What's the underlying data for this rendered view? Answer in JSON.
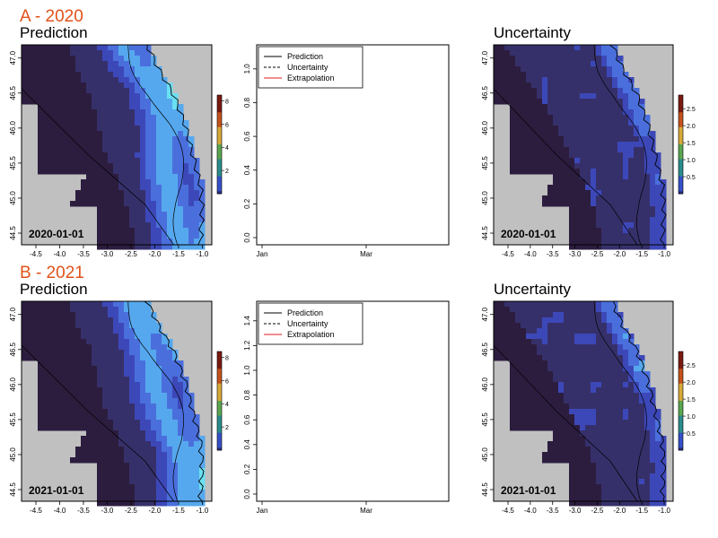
{
  "figure": {
    "rows": [
      {
        "label": "A - 2020",
        "map_titles": {
          "prediction": "Prediction",
          "uncertainty": "Uncertainty"
        },
        "date": "2020-01-01",
        "legend": [
          "Prediction",
          "Uncertainty",
          "Extrapolation"
        ]
      },
      {
        "label": "B - 2021",
        "map_titles": {
          "prediction": "Prediction",
          "uncertainty": "Uncertainty"
        },
        "date": "2021-01-01",
        "legend": [
          "Prediction",
          "Uncertainty",
          "Extrapolation"
        ]
      }
    ]
  },
  "colors": {
    "panel_label": "#e0521a",
    "land": "#c0c0c0",
    "background_white": "#ffffff",
    "extrapolation_line": "#e41a1c",
    "scale_low": "#2a1b3c",
    "scale_mid": "#3b4fc8",
    "scale_high": "#5ce6f0"
  },
  "chart_data": [
    {
      "id": "A-prediction-map",
      "type": "heatmap",
      "title": "Prediction",
      "x_ticks": [
        "-4.5",
        "-4.0",
        "-3.5",
        "-3.0",
        "-2.5",
        "-2.0",
        "-1.5",
        "-1.0"
      ],
      "y_ticks": [
        "44.5",
        "45.0",
        "45.5",
        "46.0",
        "46.5",
        "47.0"
      ],
      "xlim": [
        -4.75,
        -1.0
      ],
      "ylim": [
        44.3,
        47.1
      ],
      "colorbar": {
        "ticks": [
          "2",
          "4",
          "6",
          "8"
        ],
        "range": [
          0,
          8.5
        ]
      },
      "date_label": "2020-01-01"
    },
    {
      "id": "A-timeseries",
      "type": "line",
      "x_ticks": [
        "Jan",
        "Mar"
      ],
      "y_ticks": [
        "0.0",
        "0.2",
        "0.4",
        "0.6",
        "0.8",
        "1.0"
      ],
      "ylim": [
        0,
        1.1
      ],
      "series": [
        {
          "name": "Prediction",
          "style": "solid",
          "color": "#000000",
          "values": []
        },
        {
          "name": "Uncertainty",
          "style": "dashed",
          "color": "#000000",
          "values": []
        },
        {
          "name": "Extrapolation",
          "style": "solid",
          "color": "#e41a1c",
          "values": []
        }
      ]
    },
    {
      "id": "A-uncertainty-map",
      "type": "heatmap",
      "title": "Uncertainty",
      "x_ticks": [
        "-4.5",
        "-4.0",
        "-3.5",
        "-3.0",
        "-2.5",
        "-2.0",
        "-1.5",
        "-1.0"
      ],
      "y_ticks": [
        "44.5",
        "45.0",
        "45.5",
        "46.0",
        "46.5",
        "47.0"
      ],
      "xlim": [
        -4.75,
        -1.0
      ],
      "ylim": [
        44.3,
        47.1
      ],
      "colorbar": {
        "ticks": [
          "0.5",
          "1.0",
          "1.5",
          "2.0",
          "2.5"
        ],
        "range": [
          0,
          2.9
        ]
      },
      "date_label": "2020-01-01"
    },
    {
      "id": "B-prediction-map",
      "type": "heatmap",
      "title": "Prediction",
      "x_ticks": [
        "-4.5",
        "-4.0",
        "-3.5",
        "-3.0",
        "-2.5",
        "-2.0",
        "-1.5",
        "-1.0"
      ],
      "y_ticks": [
        "44.5",
        "45.0",
        "45.5",
        "46.0",
        "46.5",
        "47.0"
      ],
      "xlim": [
        -4.75,
        -1.0
      ],
      "ylim": [
        44.3,
        47.1
      ],
      "colorbar": {
        "ticks": [
          "2",
          "4",
          "6",
          "8"
        ],
        "range": [
          0,
          8.5
        ]
      },
      "date_label": "2021-01-01"
    },
    {
      "id": "B-timeseries",
      "type": "line",
      "x_ticks": [
        "Jan",
        "Mar"
      ],
      "y_ticks": [
        "0.0",
        "0.2",
        "0.4",
        "0.6",
        "0.8",
        "1.0",
        "1.2",
        "1.4"
      ],
      "ylim": [
        0,
        1.5
      ],
      "series": [
        {
          "name": "Prediction",
          "style": "solid",
          "color": "#000000",
          "values": []
        },
        {
          "name": "Uncertainty",
          "style": "dashed",
          "color": "#000000",
          "values": []
        },
        {
          "name": "Extrapolation",
          "style": "solid",
          "color": "#e41a1c",
          "values": []
        }
      ]
    },
    {
      "id": "B-uncertainty-map",
      "type": "heatmap",
      "title": "Uncertainty",
      "x_ticks": [
        "-4.5",
        "-4.0",
        "-3.5",
        "-3.0",
        "-2.5",
        "-2.0",
        "-1.5",
        "-1.0"
      ],
      "y_ticks": [
        "44.5",
        "45.0",
        "45.5",
        "46.0",
        "46.5",
        "47.0"
      ],
      "xlim": [
        -4.75,
        -1.0
      ],
      "ylim": [
        44.3,
        47.1
      ],
      "colorbar": {
        "ticks": [
          "0.5",
          "1.0",
          "1.5",
          "2.0",
          "2.5"
        ],
        "range": [
          0,
          2.9
        ]
      },
      "date_label": "2021-01-01"
    }
  ]
}
